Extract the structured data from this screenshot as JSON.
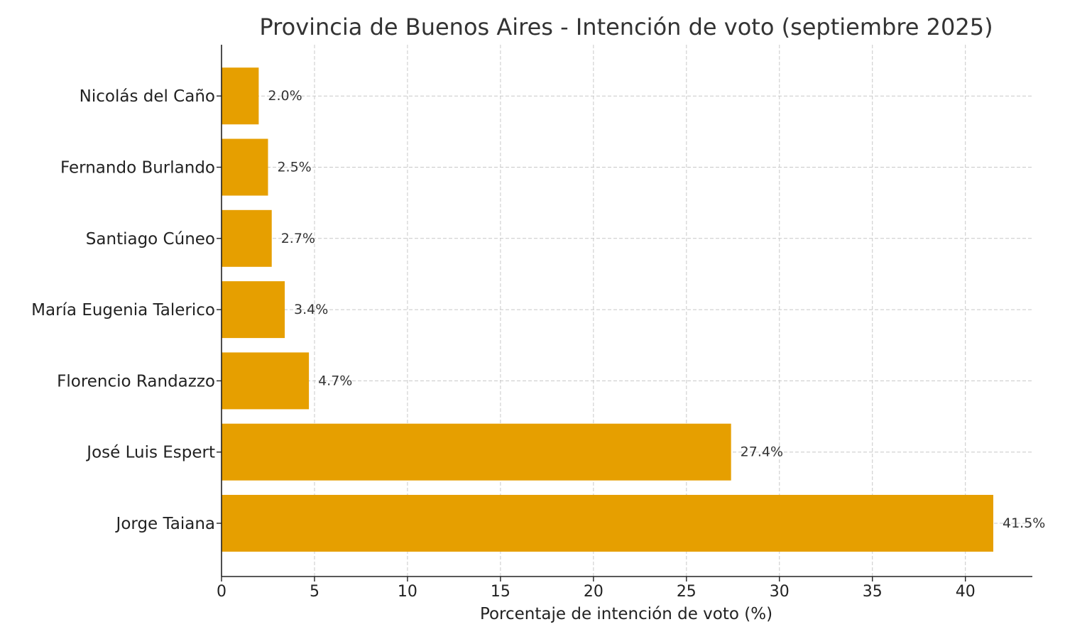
{
  "chart_data": {
    "type": "bar",
    "orientation": "horizontal",
    "title": "Provincia de Buenos Aires - Intención de voto (septiembre 2025)",
    "xlabel": "Porcentaje de intención de voto (%)",
    "ylabel": "",
    "categories": [
      "Jorge Taiana",
      "José Luis Espert",
      "Florencio Randazzo",
      "María Eugenia Talerico",
      "Santiago Cúneo",
      "Fernando Burlando",
      "Nicolás del Caño"
    ],
    "values": [
      41.5,
      27.4,
      4.7,
      3.4,
      2.7,
      2.5,
      2.0
    ],
    "data_labels": [
      "41.5%",
      "27.4%",
      "4.7%",
      "3.4%",
      "2.7%",
      "2.5%",
      "2.0%"
    ],
    "xlim": [
      0,
      43.6
    ],
    "xticks": [
      0,
      5,
      10,
      15,
      20,
      25,
      30,
      35,
      40
    ],
    "grid": true,
    "legend": "none",
    "bar_color": "#E69F00"
  }
}
